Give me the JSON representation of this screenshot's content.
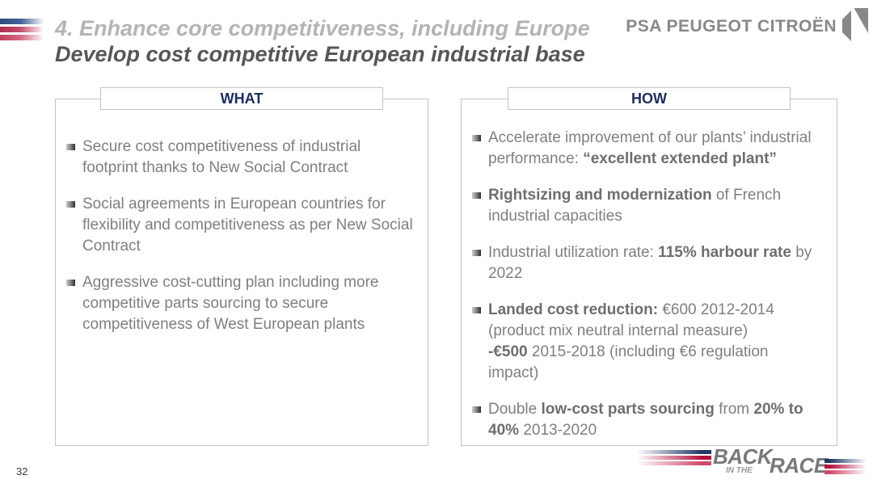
{
  "header": {
    "title_line1": "4. Enhance core competitiveness, including Europe",
    "title_line2": "Develop cost competitive European industrial base",
    "brand_text": "PSA PEUGEOT CITROËN"
  },
  "panels": [
    {
      "header": "WHAT",
      "bullets": [
        [
          {
            "t": "Secure cost competitiveness of industrial\nfootprint thanks to New Social Contract",
            "b": false
          }
        ],
        [
          {
            "t": "Social agreements in European countries for\nflexibility and competitiveness as per New Social\nContract",
            "b": false
          }
        ],
        [
          {
            "t": "Aggressive cost-cutting plan including more\ncompetitive parts sourcing to secure\ncompetitiveness of West European plants",
            "b": false
          }
        ]
      ]
    },
    {
      "header": "HOW",
      "bullets": [
        [
          {
            "t": "Accelerate improvement of our plants’ industrial\nperformance: ",
            "b": false
          },
          {
            "t": "“excellent extended plant”",
            "b": true
          }
        ],
        [
          {
            "t": "Rightsizing and modernization",
            "b": true
          },
          {
            "t": " of French\nindustrial capacities",
            "b": false
          }
        ],
        [
          {
            "t": "Industrial utilization rate: ",
            "b": false
          },
          {
            "t": "115% harbour rate",
            "b": true
          },
          {
            "t": " by\n2022",
            "b": false
          }
        ],
        [
          {
            "t": "Landed cost reduction:",
            "b": true
          },
          {
            "t": " €600 2012-2014\n(product mix neutral internal measure)\n",
            "b": false
          },
          {
            "t": "-€500",
            "b": true
          },
          {
            "t": " 2015-2018 (including €6 regulation\nimpact)",
            "b": false
          }
        ],
        [
          {
            "t": "Double ",
            "b": false
          },
          {
            "t": "low-cost parts sourcing",
            "b": true
          },
          {
            "t": " from ",
            "b": false
          },
          {
            "t": "20% to\n40%",
            "b": true
          },
          {
            "t": " 2013-2020",
            "b": false
          }
        ]
      ]
    }
  ],
  "footer": {
    "page_number": "32",
    "race": {
      "back": "BACK",
      "in_the": "IN THE",
      "race": "RACE"
    }
  },
  "colors": {
    "navy": "#1f3864",
    "red": "#c01e3f",
    "body_text_gray": "#7f7f7f",
    "title_light_gray": "#b3b4b6",
    "title_dark_gray": "#565656",
    "brand_gray": "#87888a",
    "panel_border": "#c3c3c3"
  }
}
